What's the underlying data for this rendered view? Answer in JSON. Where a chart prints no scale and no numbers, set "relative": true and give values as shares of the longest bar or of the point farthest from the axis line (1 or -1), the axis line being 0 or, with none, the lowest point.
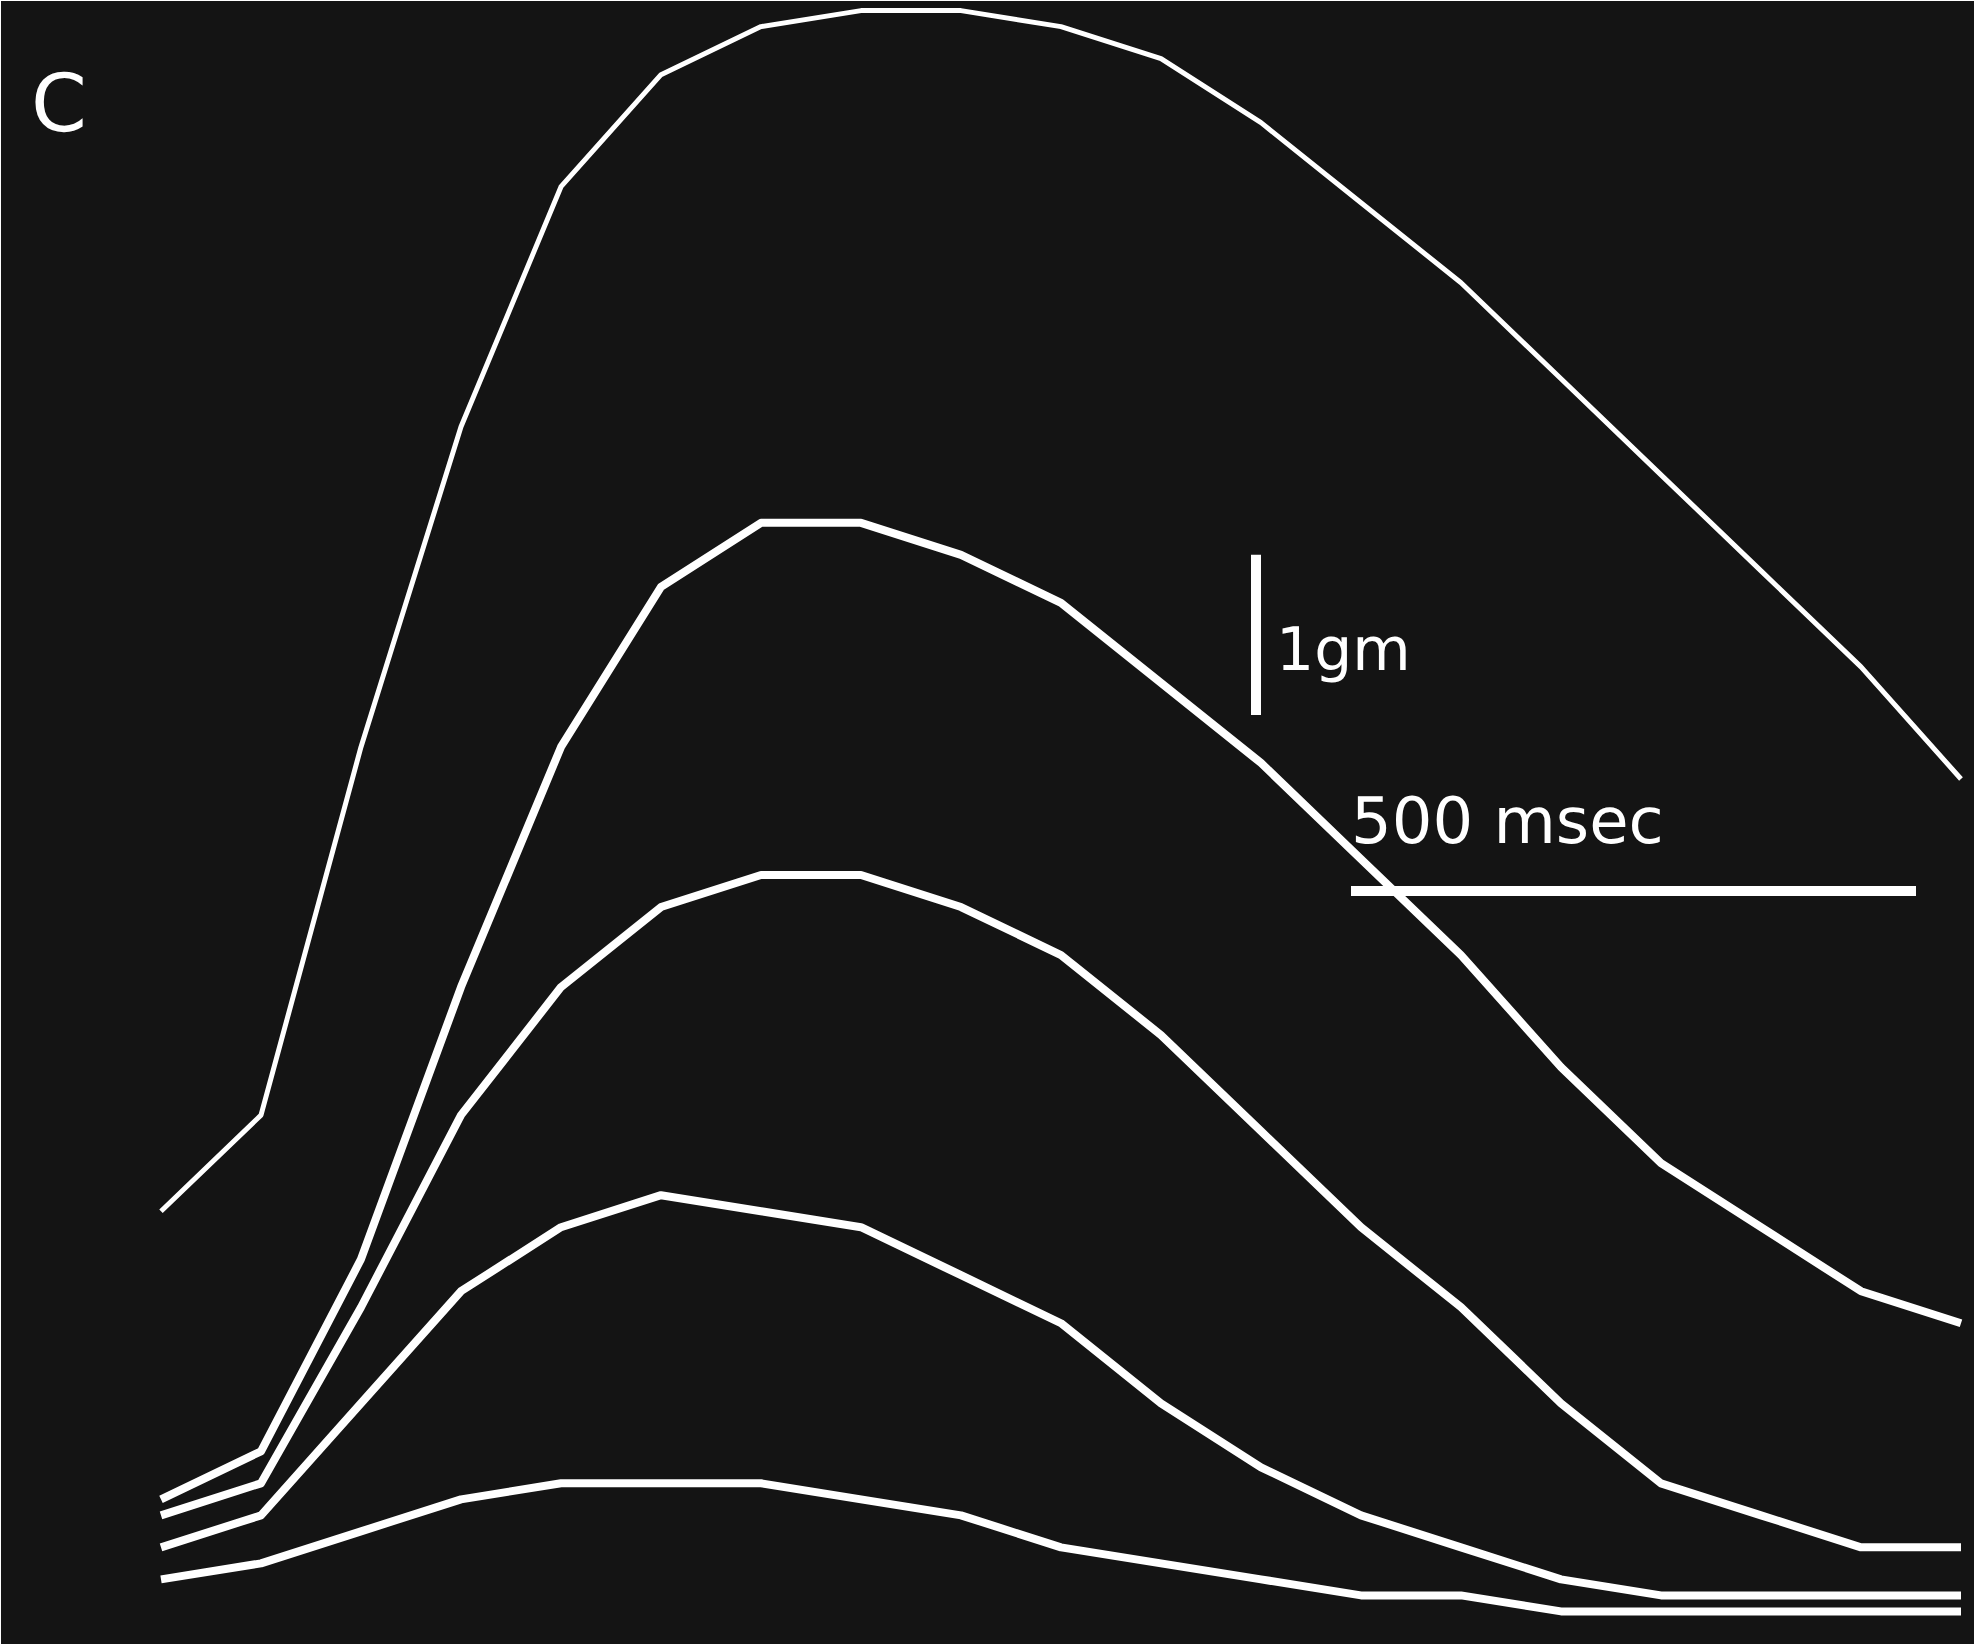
{
  "chart_data": {
    "type": "line",
    "relative": true,
    "title": "C",
    "categories": [
      null,
      null,
      null,
      null,
      null,
      null,
      null,
      null,
      null,
      null,
      null,
      null,
      null,
      null,
      null,
      null,
      null,
      null,
      null
    ],
    "series": [
      {
        "color": "#ffffff",
        "values": [
          0.25,
          0.31,
          0.54,
          0.74,
          0.89,
          0.96,
          0.99,
          1.0,
          1.0,
          0.99,
          0.97,
          0.93,
          0.88,
          0.83,
          0.77,
          0.71,
          0.65,
          0.59,
          0.52
        ]
      },
      {
        "color": "#ffffff",
        "values": [
          0.07,
          0.1,
          0.22,
          0.39,
          0.54,
          0.64,
          0.68,
          0.68,
          0.66,
          0.63,
          0.58,
          0.53,
          0.47,
          0.41,
          0.34,
          0.28,
          0.24,
          0.2,
          0.18
        ]
      },
      {
        "color": "#ffffff",
        "values": [
          0.06,
          0.08,
          0.19,
          0.31,
          0.39,
          0.44,
          0.46,
          0.46,
          0.44,
          0.41,
          0.36,
          0.3,
          0.24,
          0.19,
          0.13,
          0.08,
          0.06,
          0.04,
          0.04
        ]
      },
      {
        "color": "#ffffff",
        "values": [
          0.04,
          0.06,
          0.13,
          0.2,
          0.24,
          0.26,
          0.25,
          0.24,
          0.21,
          0.18,
          0.13,
          0.09,
          0.06,
          0.04,
          0.02,
          0.01,
          0.01,
          0.01,
          0.01
        ]
      },
      {
        "color": "#ffffff",
        "values": [
          0.02,
          0.03,
          0.05,
          0.07,
          0.08,
          0.08,
          0.08,
          0.07,
          0.06,
          0.04,
          0.03,
          0.02,
          0.01,
          0.01,
          0.0,
          0.0,
          0.0,
          0.0,
          0.0
        ]
      }
    ],
    "annotations": [
      "1gm",
      "500 msec"
    ]
  }
}
